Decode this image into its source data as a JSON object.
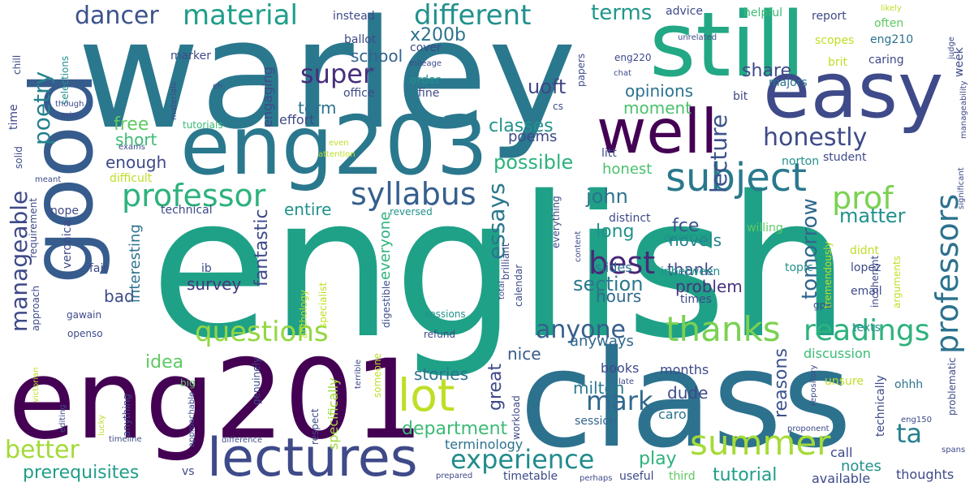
{
  "cloud": {
    "words": [
      {
        "text": "english",
        "color": "#1fa187"
      },
      {
        "text": "warley",
        "color": "#2a788e"
      },
      {
        "text": "class",
        "color": "#2c728e"
      },
      {
        "text": "eng201",
        "color": "#440154"
      },
      {
        "text": "eng203",
        "color": "#2a788e"
      },
      {
        "text": "good",
        "color": "#365c8d"
      },
      {
        "text": "still",
        "color": "#22a884"
      },
      {
        "text": "easy",
        "color": "#3e4a89"
      },
      {
        "text": "well",
        "color": "#440154"
      },
      {
        "text": "lectures",
        "color": "#3e4a89"
      },
      {
        "text": "lot",
        "color": "#bddf26"
      },
      {
        "text": "subject",
        "color": "#2a788e"
      },
      {
        "text": "professor",
        "color": "#2db27d"
      },
      {
        "text": "syllabus",
        "color": "#355f8d"
      },
      {
        "text": "professors",
        "color": "#2c728e"
      },
      {
        "text": "prof",
        "color": "#7ad151"
      },
      {
        "text": "summer",
        "color": "#a5db36"
      },
      {
        "text": "thanks",
        "color": "#7ad151"
      },
      {
        "text": "readings",
        "color": "#2db27d"
      },
      {
        "text": "questions",
        "color": "#93d741"
      },
      {
        "text": "manageable",
        "color": "#3e4989"
      },
      {
        "text": "poetry",
        "color": "#26828e"
      },
      {
        "text": "material",
        "color": "#1f9e89"
      },
      {
        "text": "different",
        "color": "#21918c"
      },
      {
        "text": "dancer",
        "color": "#3b528b"
      },
      {
        "text": "super",
        "color": "#472d7b"
      },
      {
        "text": "best",
        "color": "#482878"
      },
      {
        "text": "anyone",
        "color": "#355f8d"
      },
      {
        "text": "experience",
        "color": "#228c8d"
      },
      {
        "text": "mark",
        "color": "#31688e"
      },
      {
        "text": "honestly",
        "color": "#3e4a89"
      },
      {
        "text": "essays",
        "color": "#2a788e"
      },
      {
        "text": "better",
        "color": "#a2da37"
      },
      {
        "text": "prerequisites",
        "color": "#1f9e89"
      },
      {
        "text": "ta",
        "color": "#27808e"
      },
      {
        "text": "terms",
        "color": "#1f978b"
      },
      {
        "text": "possible",
        "color": "#2db27d"
      },
      {
        "text": "tomorrow",
        "color": "#31688e"
      },
      {
        "text": "department",
        "color": "#3bbb75"
      },
      {
        "text": "lecture",
        "color": "#3b528b"
      },
      {
        "text": "section",
        "color": "#2a788e"
      },
      {
        "text": "fantastic",
        "color": "#3e4a89"
      },
      {
        "text": "great",
        "color": "#3e4a89"
      },
      {
        "text": "john",
        "color": "#2c728e"
      },
      {
        "text": "matter",
        "color": "#21918c"
      },
      {
        "text": "reasons",
        "color": "#3b528b"
      },
      {
        "text": "tutorial",
        "color": "#1f9e89"
      },
      {
        "text": "play",
        "color": "#2db27d"
      },
      {
        "text": "uoft",
        "color": "#404688"
      },
      {
        "text": "classes",
        "color": "#21918c"
      },
      {
        "text": "share",
        "color": "#3e4a89"
      },
      {
        "text": "free",
        "color": "#5ec962"
      },
      {
        "text": "school",
        "color": "#32658e"
      },
      {
        "text": "x200b",
        "color": "#2c728e"
      },
      {
        "text": "opinions",
        "color": "#2c728e"
      },
      {
        "text": "moment",
        "color": "#4ac16d"
      },
      {
        "text": "idea",
        "color": "#5ec962"
      },
      {
        "text": "stories",
        "color": "#2c728e"
      },
      {
        "text": "milton",
        "color": "#2a788e"
      },
      {
        "text": "dude",
        "color": "#3e4a89"
      },
      {
        "text": "hours",
        "color": "#31688e"
      },
      {
        "text": "problem",
        "color": "#46337e"
      },
      {
        "text": "thank",
        "color": "#3e4a89"
      },
      {
        "text": "fce",
        "color": "#3b528b"
      },
      {
        "text": "long",
        "color": "#21918c"
      },
      {
        "text": "novels",
        "color": "#26828e"
      },
      {
        "text": "survey",
        "color": "#46337e"
      },
      {
        "text": "bad",
        "color": "#3e4a89"
      },
      {
        "text": "nice",
        "color": "#365c8d"
      },
      {
        "text": "short",
        "color": "#3bbb75"
      },
      {
        "text": "enough",
        "color": "#3e4a89"
      },
      {
        "text": "entire",
        "color": "#21918c"
      },
      {
        "text": "interesting",
        "color": "#2c728e"
      },
      {
        "text": "everyone",
        "color": "#2db27d"
      },
      {
        "text": "engaging",
        "color": "#3e4a89"
      },
      {
        "text": "term",
        "color": "#2c728e"
      },
      {
        "text": "notes",
        "color": "#21918c"
      },
      {
        "text": "anyways",
        "color": "#31688e"
      },
      {
        "text": "honest",
        "color": "#4ac16d"
      },
      {
        "text": "poems",
        "color": "#3e4a89"
      },
      {
        "text": "effort",
        "color": "#3e4a89"
      },
      {
        "text": "months",
        "color": "#3e4a89"
      },
      {
        "text": "books",
        "color": "#3e4a89"
      },
      {
        "text": "carol",
        "color": "#2c728e"
      },
      {
        "text": "slides",
        "color": "#2c728e"
      },
      {
        "text": "quercus",
        "color": "#21918c"
      },
      {
        "text": "discussion",
        "color": "#3bbb75"
      },
      {
        "text": "terminology",
        "color": "#2c728e"
      },
      {
        "text": "specifically",
        "color": "#a0da39"
      },
      {
        "text": "session",
        "color": "#32658e"
      },
      {
        "text": "call",
        "color": "#3e4a89"
      },
      {
        "text": "texts",
        "color": "#21918c"
      },
      {
        "text": "thoughts",
        "color": "#3e4a89"
      },
      {
        "text": "available",
        "color": "#3e4a89"
      },
      {
        "text": "third",
        "color": "#5ec962"
      },
      {
        "text": "useful",
        "color": "#3e4a89"
      },
      {
        "text": "timetable",
        "color": "#3e4a89"
      },
      {
        "text": "vs",
        "color": "#3e4a89"
      },
      {
        "text": "ohhh",
        "color": "#2c728e"
      },
      {
        "text": "unsure",
        "color": "#bddf26"
      },
      {
        "text": "technically",
        "color": "#3e4a89"
      },
      {
        "text": "email",
        "color": "#3e4a89"
      },
      {
        "text": "times",
        "color": "#3e4a89"
      },
      {
        "text": "lopez",
        "color": "#3e4a89"
      },
      {
        "text": "inbetween",
        "color": "#21918c"
      },
      {
        "text": "topic",
        "color": "#21918c"
      },
      {
        "text": "didnt",
        "color": "#bddf26"
      },
      {
        "text": "student",
        "color": "#3e4a89"
      },
      {
        "text": "norton",
        "color": "#21918c"
      },
      {
        "text": "willing",
        "color": "#5ec962"
      },
      {
        "text": "distinct",
        "color": "#3e4a89"
      },
      {
        "text": "litt",
        "color": "#3e4a89"
      },
      {
        "text": "bit",
        "color": "#3e4a89"
      },
      {
        "text": "majors",
        "color": "#2c728e"
      },
      {
        "text": "caring",
        "color": "#3e4a89"
      },
      {
        "text": "brit",
        "color": "#bddf26"
      },
      {
        "text": "scopes",
        "color": "#bddf26"
      },
      {
        "text": "eng210",
        "color": "#2c728e"
      },
      {
        "text": "often",
        "color": "#5ec962"
      },
      {
        "text": "report",
        "color": "#3e4a89"
      },
      {
        "text": "helpful",
        "color": "#3bbb75"
      },
      {
        "text": "advice",
        "color": "#3e4a89"
      },
      {
        "text": "instead",
        "color": "#3e4a89"
      },
      {
        "text": "ballot",
        "color": "#3e4a89"
      },
      {
        "text": "cover",
        "color": "#3e4a89"
      },
      {
        "text": "order",
        "color": "#21918c"
      },
      {
        "text": "fine",
        "color": "#3e4a89"
      },
      {
        "text": "office",
        "color": "#3e4a89"
      },
      {
        "text": "marker",
        "color": "#3e4a89"
      },
      {
        "text": "eng220",
        "color": "#3e4a89"
      },
      {
        "text": "papers",
        "color": "#3e4a89"
      },
      {
        "text": "chat",
        "color": "#3e4a89"
      },
      {
        "text": "week",
        "color": "#3e4a89"
      },
      {
        "text": "likely",
        "color": "#bddf26"
      },
      {
        "text": "judge",
        "color": "#3e4a89"
      },
      {
        "text": "unrelated",
        "color": "#3e4a89"
      },
      {
        "text": "mileage",
        "color": "#3e4a89"
      },
      {
        "text": "sir",
        "color": "#3e4a89"
      },
      {
        "text": "selections",
        "color": "#21918c"
      },
      {
        "text": "chill",
        "color": "#3e4a89"
      },
      {
        "text": "time",
        "color": "#3e4a89"
      },
      {
        "text": "materials",
        "color": "#3e4a89"
      },
      {
        "text": "tutorials",
        "color": "#3bbb75"
      },
      {
        "text": "eh",
        "color": "#3e4a89"
      },
      {
        "text": "though",
        "color": "#3e4a89"
      },
      {
        "text": "prior",
        "color": "#3e4a89"
      },
      {
        "text": "exams",
        "color": "#3e4a89"
      },
      {
        "text": "solid",
        "color": "#3e4a89"
      },
      {
        "text": "meant",
        "color": "#3e4a89"
      },
      {
        "text": "difficult",
        "color": "#bddf26"
      },
      {
        "text": "requirement",
        "color": "#3e4a89"
      },
      {
        "text": "nope",
        "color": "#3e4a89"
      },
      {
        "text": "veronica",
        "color": "#3e4a89"
      },
      {
        "text": "technical",
        "color": "#3e4a89"
      },
      {
        "text": "fair",
        "color": "#3e4a89"
      },
      {
        "text": "ib",
        "color": "#3e4a89"
      },
      {
        "text": "approach",
        "color": "#3e4a89"
      },
      {
        "text": "victorian",
        "color": "#bddf26"
      },
      {
        "text": "gawain",
        "color": "#3e4a89"
      },
      {
        "text": "openso",
        "color": "#3e4a89"
      },
      {
        "text": "big",
        "color": "#5ec962"
      },
      {
        "text": "editing",
        "color": "#3e4a89"
      },
      {
        "text": "lucky",
        "color": "#bddf26"
      },
      {
        "text": "approachable",
        "color": "#3e4a89"
      },
      {
        "text": "timeline",
        "color": "#3e4a89"
      },
      {
        "text": "difference",
        "color": "#3e4a89"
      },
      {
        "text": "genuinely",
        "color": "#3e4a89"
      },
      {
        "text": "respect",
        "color": "#3e4a89"
      },
      {
        "text": "anything",
        "color": "#3e4a89"
      },
      {
        "text": "someone",
        "color": "#bddf26"
      },
      {
        "text": "prepared",
        "color": "#3e4a89"
      },
      {
        "text": "total",
        "color": "#3e4a89"
      },
      {
        "text": "workload",
        "color": "#3e4a89"
      },
      {
        "text": "perhaps",
        "color": "#3e4a89"
      },
      {
        "text": "terrible",
        "color": "#3e4a89"
      },
      {
        "text": "refund",
        "color": "#3e4a89"
      },
      {
        "text": "sessions",
        "color": "#21918c"
      },
      {
        "text": "anthology",
        "color": "#bddf26"
      },
      {
        "text": "specialist",
        "color": "#bddf26"
      },
      {
        "text": "digestible",
        "color": "#3e4a89"
      },
      {
        "text": "reversed",
        "color": "#21918c"
      },
      {
        "text": "brilliant",
        "color": "#3e4a89"
      },
      {
        "text": "calendar",
        "color": "#3e4a89"
      },
      {
        "text": "everything",
        "color": "#3e4a89"
      },
      {
        "text": "content",
        "color": "#3e4a89"
      },
      {
        "text": "late",
        "color": "#3e4a89"
      },
      {
        "text": "proponent",
        "color": "#3e4a89"
      },
      {
        "text": "repository",
        "color": "#3e4a89"
      },
      {
        "text": "gpa",
        "color": "#3e4a89"
      },
      {
        "text": "arguments",
        "color": "#bddf26"
      },
      {
        "text": "tremendously",
        "color": "#bddf26"
      },
      {
        "text": "incoherent",
        "color": "#3e4a89"
      },
      {
        "text": "problematic",
        "color": "#3e4a89"
      },
      {
        "text": "significant",
        "color": "#3e4a89"
      },
      {
        "text": "manageability",
        "color": "#3e4a89"
      },
      {
        "text": "spans",
        "color": "#3e4a89"
      },
      {
        "text": "eng150",
        "color": "#3e4a89"
      },
      {
        "text": "cs",
        "color": "#3e4a89"
      },
      {
        "text": "even",
        "color": "#bddf26"
      },
      {
        "text": "attention",
        "color": "#bddf26"
      }
    ]
  }
}
